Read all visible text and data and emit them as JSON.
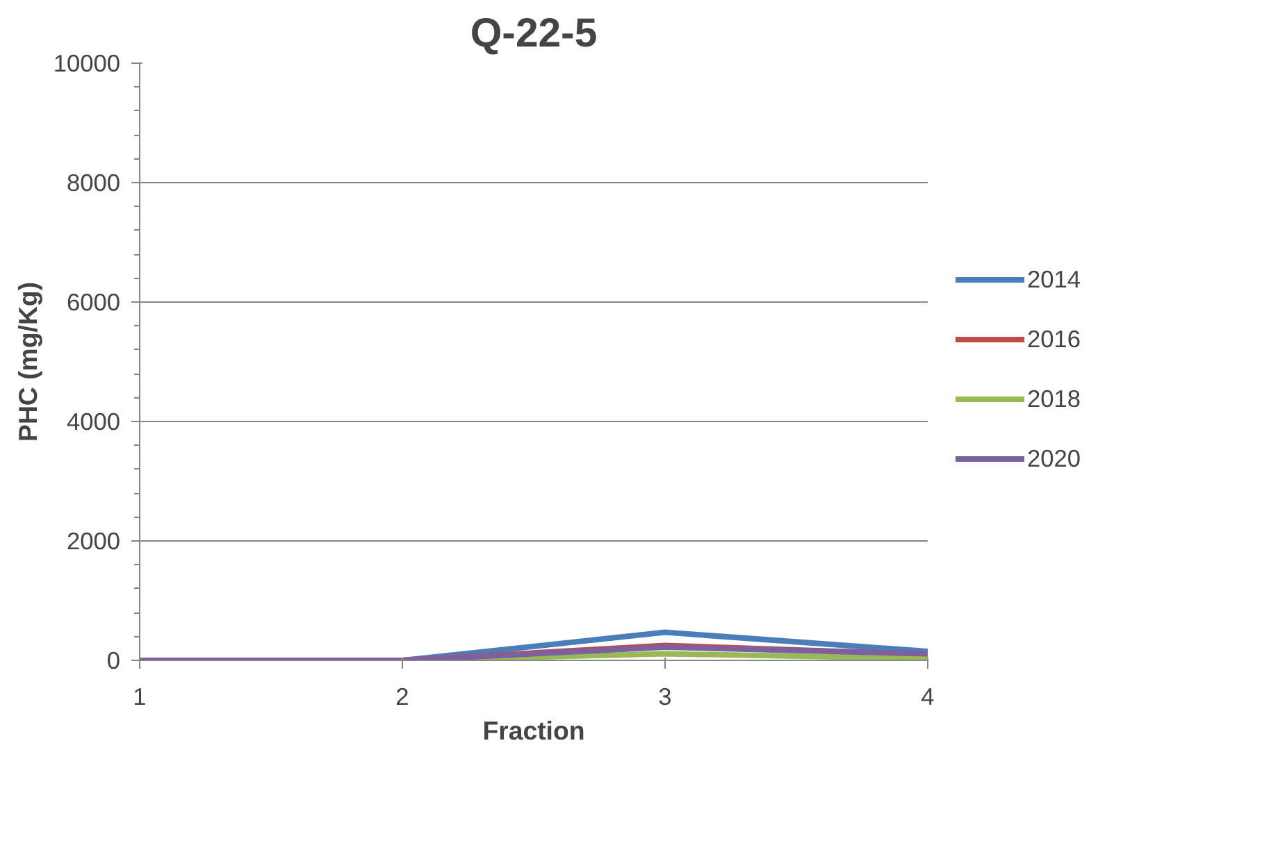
{
  "chart_data": {
    "type": "line",
    "title": "Q-22-5",
    "xlabel": "Fraction",
    "ylabel": "PHC (mg/Kg)",
    "x": [
      1,
      2,
      3,
      4
    ],
    "xlim": [
      1,
      4
    ],
    "xticks": [
      1,
      2,
      3,
      4
    ],
    "ylim": [
      0,
      10000
    ],
    "yticks": [
      0,
      2000,
      4000,
      6000,
      8000,
      10000
    ],
    "grid": "y",
    "legend": "right",
    "marker": "none",
    "line_style": "solid",
    "series": [
      {
        "name": "2014",
        "color": "#4a7ebb",
        "values": [
          0,
          0,
          470,
          150
        ]
      },
      {
        "name": "2016",
        "color": "#be4b48",
        "values": [
          0,
          0,
          250,
          100
        ]
      },
      {
        "name": "2018",
        "color": "#98b954",
        "values": [
          0,
          0,
          110,
          30
        ]
      },
      {
        "name": "2020",
        "color": "#7d60a0",
        "values": [
          0,
          0,
          220,
          110
        ]
      }
    ]
  }
}
